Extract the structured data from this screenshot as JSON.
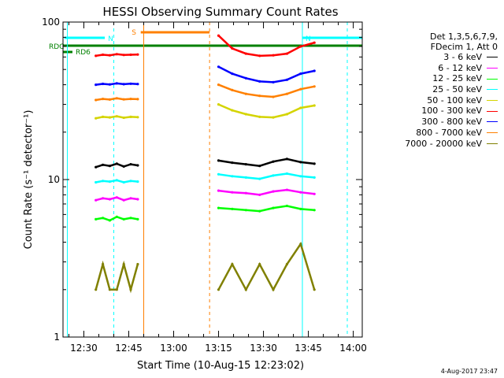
{
  "chart_data": {
    "type": "line",
    "title": "HESSI Observing Summary Count Rates",
    "xlabel": "Start Time (10-Aug-15 12:23:02)",
    "ylabel": "Count Rate (s⁻¹ detector⁻¹)",
    "y_scale": "log",
    "ylim": [
      1,
      100
    ],
    "xlim": [
      "12:23:02",
      "14:03:00"
    ],
    "x_ticks": [
      "12:30",
      "12:45",
      "13:00",
      "13:15",
      "13:30",
      "13:45",
      "14:00"
    ],
    "y_ticks": [
      "1",
      "10",
      "100"
    ],
    "legend_header": [
      "Det 1,3,5,6,7,9,",
      "FDecim 1, Att 0"
    ],
    "legend_position": "right",
    "timestamp": "4-Aug-2017 23:47",
    "series": [
      {
        "name": "3 - 6 keV",
        "color": "#000000",
        "segments": [
          {
            "start": "12:34",
            "end": "12:48",
            "values": [
              12.0,
              12.4,
              12.2,
              12.6,
              12.1,
              12.5,
              12.3
            ]
          },
          {
            "start": "13:15",
            "end": "13:47",
            "values": [
              13.2,
              12.8,
              12.5,
              12.2,
              13.0,
              13.5,
              12.9,
              12.6
            ]
          }
        ]
      },
      {
        "name": "6 - 12 keV",
        "color": "#ff00ff",
        "segments": [
          {
            "start": "12:34",
            "end": "12:48",
            "values": [
              7.4,
              7.6,
              7.5,
              7.7,
              7.4,
              7.6,
              7.5
            ]
          },
          {
            "start": "13:15",
            "end": "13:47",
            "values": [
              8.5,
              8.3,
              8.2,
              8.0,
              8.4,
              8.6,
              8.3,
              8.1
            ]
          }
        ]
      },
      {
        "name": "12 - 25 keV",
        "color": "#00ff00",
        "segments": [
          {
            "start": "12:34",
            "end": "12:48",
            "values": [
              5.6,
              5.7,
              5.5,
              5.8,
              5.6,
              5.7,
              5.6
            ]
          },
          {
            "start": "13:15",
            "end": "13:47",
            "values": [
              6.6,
              6.5,
              6.4,
              6.3,
              6.6,
              6.8,
              6.5,
              6.4
            ]
          }
        ]
      },
      {
        "name": "25 - 50 keV",
        "color": "#00ffff",
        "segments": [
          {
            "start": "12:34",
            "end": "12:48",
            "values": [
              9.6,
              9.8,
              9.7,
              9.9,
              9.6,
              9.8,
              9.7
            ]
          },
          {
            "start": "13:15",
            "end": "13:47",
            "values": [
              10.8,
              10.5,
              10.3,
              10.1,
              10.6,
              10.9,
              10.5,
              10.3
            ]
          }
        ]
      },
      {
        "name": "50 - 100 keV",
        "color": "#d4d400",
        "segments": [
          {
            "start": "12:34",
            "end": "12:48",
            "values": [
              24.5,
              25.0,
              24.8,
              25.2,
              24.7,
              25.0,
              24.9
            ]
          },
          {
            "start": "13:15",
            "end": "13:47",
            "values": [
              30.0,
              27.5,
              26.0,
              25.0,
              24.8,
              26.0,
              28.5,
              29.5
            ]
          }
        ]
      },
      {
        "name": "100 - 300 keV",
        "color": "#ff0000",
        "segments": [
          {
            "start": "12:34",
            "end": "12:48",
            "values": [
              61.0,
              62.0,
              61.5,
              62.5,
              61.8,
              62.0,
              62.2
            ]
          },
          {
            "start": "13:15",
            "end": "13:47",
            "values": [
              82.0,
              68.0,
              63.0,
              61.0,
              61.5,
              63.0,
              70.0,
              74.0
            ]
          }
        ]
      },
      {
        "name": "300 - 800 keV",
        "color": "#0000ff",
        "segments": [
          {
            "start": "12:34",
            "end": "12:48",
            "values": [
              40.0,
              40.5,
              40.2,
              40.8,
              40.3,
              40.6,
              40.4
            ]
          },
          {
            "start": "13:15",
            "end": "13:47",
            "values": [
              52.0,
              47.0,
              44.0,
              42.0,
              41.5,
              43.0,
              47.0,
              49.0
            ]
          }
        ]
      },
      {
        "name": "800 - 7000 keV",
        "color": "#ff8000",
        "segments": [
          {
            "start": "12:34",
            "end": "12:48",
            "values": [
              32.0,
              32.5,
              32.2,
              32.8,
              32.3,
              32.5,
              32.4
            ]
          },
          {
            "start": "13:15",
            "end": "13:47",
            "values": [
              40.0,
              37.0,
              35.0,
              34.0,
              33.5,
              35.0,
              37.5,
              39.0
            ]
          }
        ]
      },
      {
        "name": "7000 - 20000 keV",
        "color": "#808000",
        "segments": [
          {
            "start": "12:34",
            "end": "12:48",
            "values": [
              2.0,
              2.9,
              2.0,
              2.0,
              2.9,
              2.0,
              2.9
            ]
          },
          {
            "start": "13:15",
            "end": "13:47",
            "values": [
              2.0,
              2.9,
              2.0,
              2.9,
              2.0,
              2.9,
              3.9,
              2.0
            ]
          }
        ]
      }
    ],
    "annotations": [
      {
        "label": "N",
        "color": "#00ffff"
      },
      {
        "label": "S",
        "color": "#ff8000"
      },
      {
        "label": "RDC",
        "color": "#008000"
      },
      {
        "label": "RD6",
        "color": "#008000"
      }
    ]
  }
}
